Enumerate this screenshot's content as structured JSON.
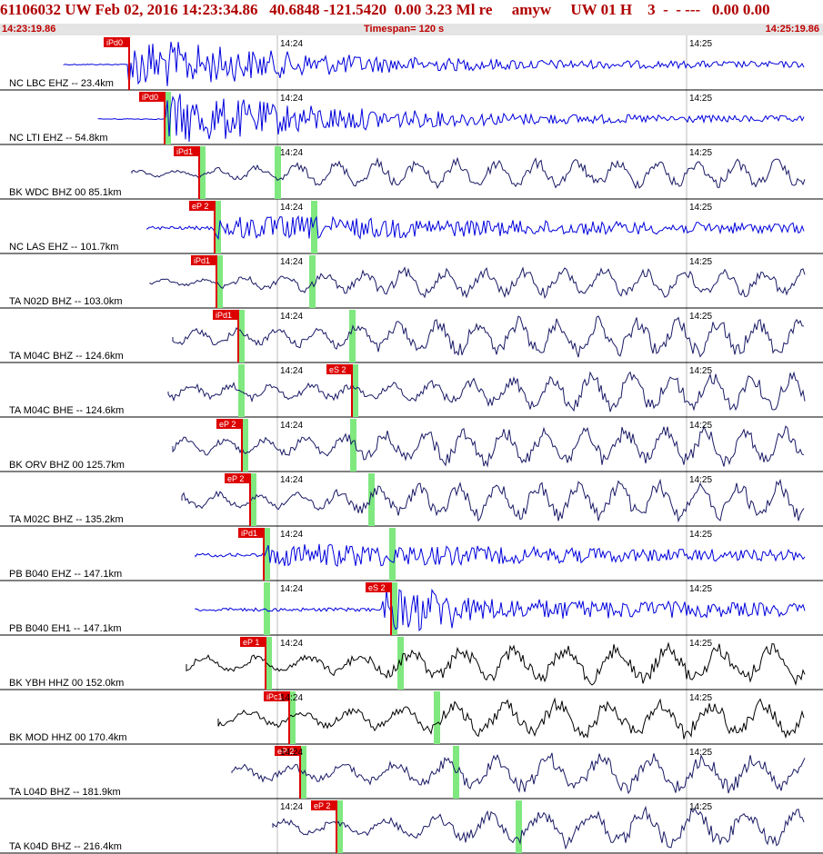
{
  "header": {
    "main_text": "61106032 UW Feb 02, 2016 14:23:34.86   40.6848 -121.5420  0.00 3.23 Ml re     amyw     UW 01 H    3  -  - ---   0.00 0.00",
    "start_time": "14:23:19.86",
    "timespan": "Timespan= 120 s",
    "end_time": "14:25:19.86"
  },
  "time_ticks": [
    "14:24",
    "14:25"
  ],
  "colors": {
    "blue": "#0000dd",
    "navy": "#1a1a66",
    "black": "#000000",
    "pick_red": "#dd0000",
    "s_green": "#7fe87f"
  },
  "traces": [
    {
      "label": "NC LBC EHZ -- 23.4km",
      "color": "blue",
      "pick": "iPd0"
    },
    {
      "label": "NC LTI EHZ -- 54.8km",
      "color": "blue",
      "pick": "iPd0"
    },
    {
      "label": "BK WDC BHZ 00 85.1km",
      "color": "navy",
      "pick": "iPd1"
    },
    {
      "label": "NC LAS EHZ -- 101.7km",
      "color": "blue",
      "pick": "eP 2"
    },
    {
      "label": "TA N02D BHZ -- 103.0km",
      "color": "navy",
      "pick": "iPd1"
    },
    {
      "label": "TA M04C BHZ -- 124.6km",
      "color": "navy",
      "pick": "iPd1"
    },
    {
      "label": "TA M04C BHE -- 124.6km",
      "color": "navy",
      "pick": "eS 2"
    },
    {
      "label": "BK ORV BHZ 00 125.7km",
      "color": "navy",
      "pick": "eP 2"
    },
    {
      "label": "TA M02C BHZ -- 135.2km",
      "color": "navy",
      "pick": "eP 2"
    },
    {
      "label": "PB B040 EHZ -- 147.1km",
      "color": "blue",
      "pick": "iPd1"
    },
    {
      "label": "PB B040 EH1 -- 147.1km",
      "color": "blue",
      "pick": "eS 2"
    },
    {
      "label": "BK YBH HHZ 00 152.0km",
      "color": "black",
      "pick": "eP 1"
    },
    {
      "label": "BK MOD HHZ 00 170.4km",
      "color": "black",
      "pick": "iPc1"
    },
    {
      "label": "TA L04D BHZ -- 181.9km",
      "color": "navy",
      "pick": "eP 2"
    },
    {
      "label": "TA K04D BHZ -- 216.4km",
      "color": "navy",
      "pick": "eP 2"
    }
  ]
}
